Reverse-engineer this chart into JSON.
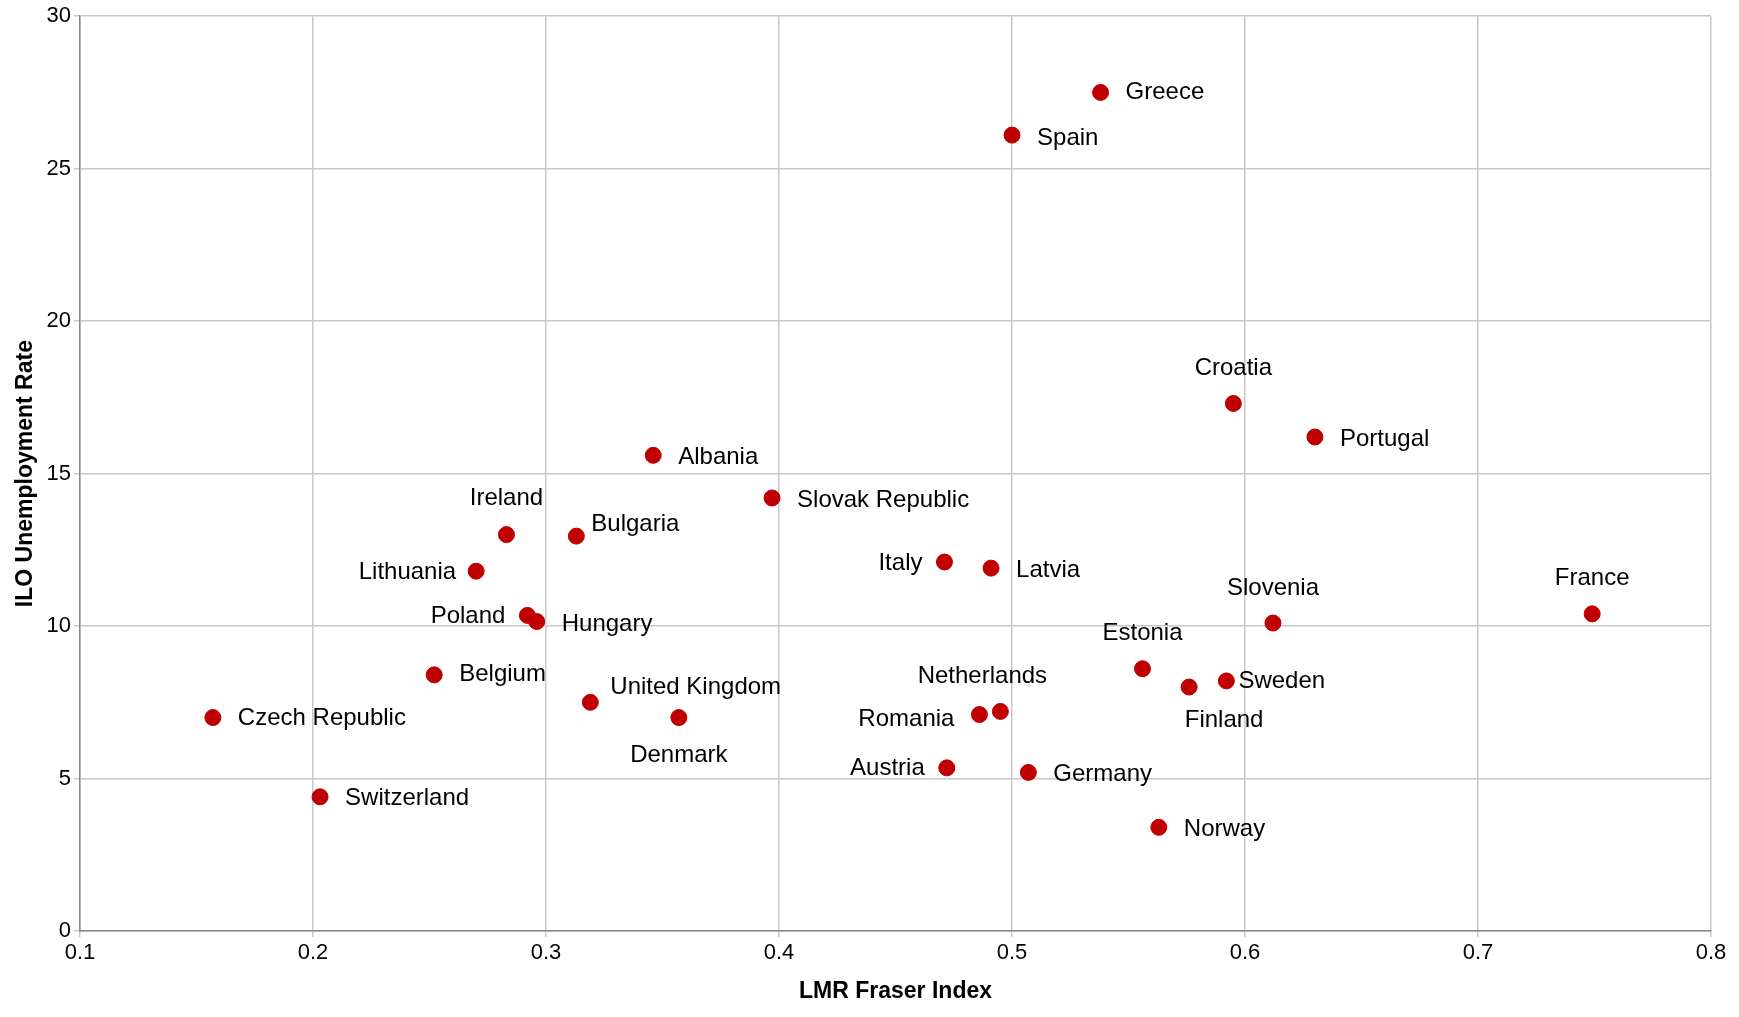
{
  "chart_data": {
    "type": "scatter",
    "xlabel": "LMR Fraser Index",
    "ylabel": "ILO Unemployment Rate",
    "x": [
      0.538,
      0.5,
      0.595,
      0.63,
      0.346,
      0.397,
      0.283,
      0.313,
      0.27,
      0.471,
      0.491,
      0.612,
      0.749,
      0.292,
      0.296,
      0.556,
      0.576,
      0.592,
      0.252,
      0.319,
      0.357,
      0.157,
      0.495,
      0.486,
      0.472,
      0.507,
      0.203,
      0.563
    ],
    "values": [
      27.5,
      26.1,
      17.3,
      16.2,
      15.6,
      14.2,
      13.0,
      12.95,
      11.8,
      12.1,
      11.9,
      10.1,
      10.4,
      10.35,
      10.15,
      8.6,
      8.0,
      8.2,
      8.4,
      7.5,
      7.0,
      7.0,
      7.2,
      7.1,
      5.35,
      5.2,
      4.4,
      3.4
    ],
    "annotations": [
      {
        "text": "Greece",
        "x": 0.538,
        "y": 27.5
      },
      {
        "text": "Spain",
        "x": 0.5,
        "y": 26.1
      },
      {
        "text": "Croatia",
        "x": 0.595,
        "y": 17.3
      },
      {
        "text": "Portugal",
        "x": 0.63,
        "y": 16.2
      },
      {
        "text": "Albania",
        "x": 0.346,
        "y": 15.6
      },
      {
        "text": "Slovak Republic",
        "x": 0.397,
        "y": 14.2
      },
      {
        "text": "Ireland",
        "x": 0.283,
        "y": 13.0
      },
      {
        "text": "Bulgaria",
        "x": 0.313,
        "y": 12.95
      },
      {
        "text": "Lithuania",
        "x": 0.27,
        "y": 11.8
      },
      {
        "text": "Italy",
        "x": 0.471,
        "y": 12.1
      },
      {
        "text": "Latvia",
        "x": 0.491,
        "y": 11.9
      },
      {
        "text": "Slovenia",
        "x": 0.612,
        "y": 10.1
      },
      {
        "text": "France",
        "x": 0.749,
        "y": 10.4
      },
      {
        "text": "Poland",
        "x": 0.292,
        "y": 10.35
      },
      {
        "text": "Hungary",
        "x": 0.296,
        "y": 10.15
      },
      {
        "text": "Estonia",
        "x": 0.556,
        "y": 8.6
      },
      {
        "text": "Finland",
        "x": 0.576,
        "y": 8.0
      },
      {
        "text": "Sweden",
        "x": 0.592,
        "y": 8.2
      },
      {
        "text": "Belgium",
        "x": 0.252,
        "y": 8.4
      },
      {
        "text": "United Kingdom",
        "x": 0.319,
        "y": 7.5
      },
      {
        "text": "Denmark",
        "x": 0.357,
        "y": 7.0
      },
      {
        "text": "Czech Republic",
        "x": 0.157,
        "y": 7.0
      },
      {
        "text": "Netherlands",
        "x": 0.495,
        "y": 7.2
      },
      {
        "text": "Romania",
        "x": 0.486,
        "y": 7.1
      },
      {
        "text": "Austria",
        "x": 0.472,
        "y": 5.35
      },
      {
        "text": "Germany",
        "x": 0.507,
        "y": 5.2
      },
      {
        "text": "Switzerland",
        "x": 0.203,
        "y": 4.4
      },
      {
        "text": "Norway",
        "x": 0.563,
        "y": 3.4
      }
    ],
    "color": "#c00000",
    "marker": "circle",
    "grid": true,
    "legend": false,
    "xlim": [
      0.1,
      0.8
    ],
    "xticks": [
      0.1,
      0.2,
      0.3,
      0.4,
      0.5,
      0.6,
      0.7,
      0.8
    ],
    "ylim": [
      0,
      30
    ],
    "yticks": [
      0,
      5,
      10,
      15,
      20,
      25,
      30
    ]
  }
}
